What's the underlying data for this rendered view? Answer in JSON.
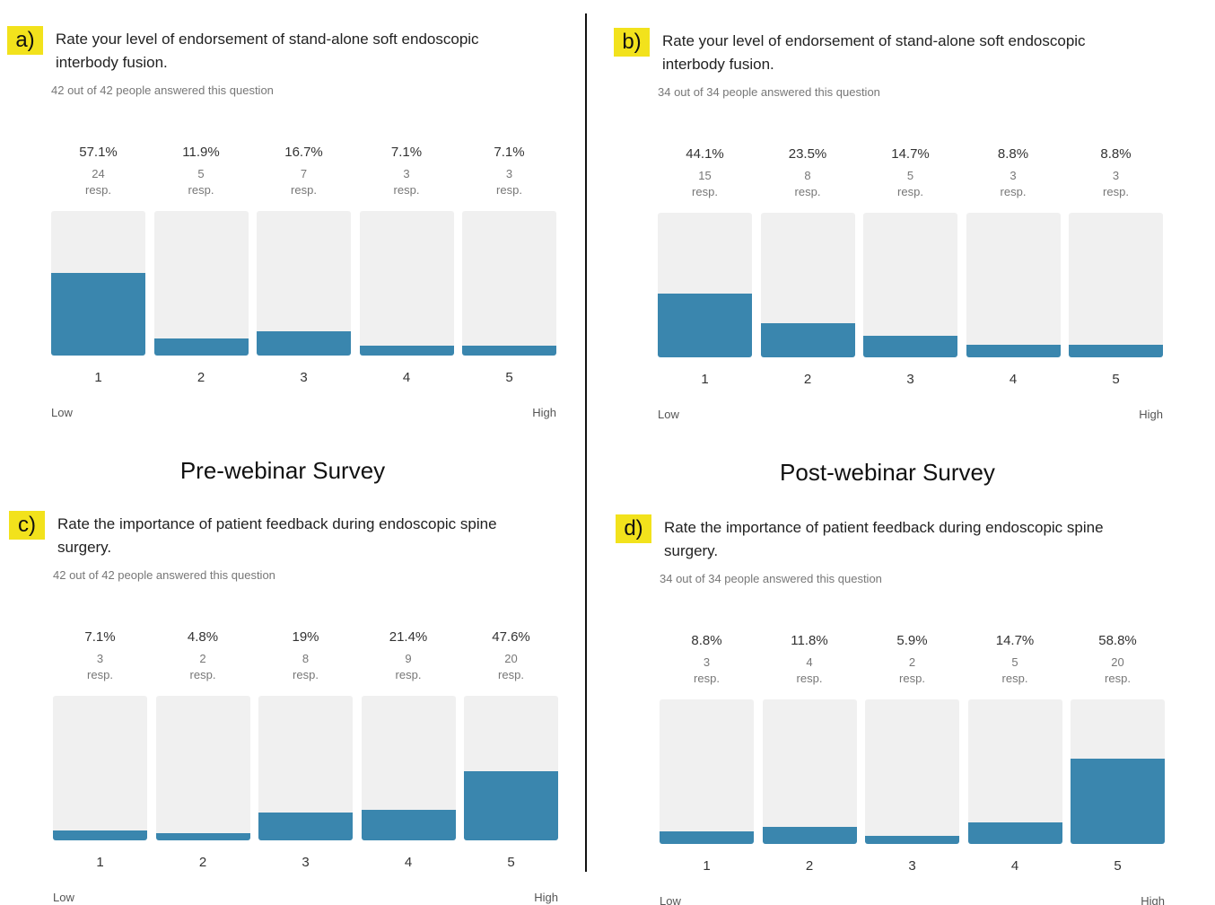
{
  "headings": [
    "Pre-webinar Survey",
    "Post-webinar Survey"
  ],
  "chart_data": [
    {
      "type": "bar",
      "panel": "a)",
      "title": "Rate your level of endorsement of stand-alone soft endoscopic interbody fusion.",
      "subtitle": "42 out of 42 people answered this question",
      "categories": [
        "1",
        "2",
        "3",
        "4",
        "5"
      ],
      "values": [
        57.1,
        11.9,
        16.7,
        7.1,
        7.1
      ],
      "value_labels": [
        "57.1%",
        "11.9%",
        "16.7%",
        "7.1%",
        "7.1%"
      ],
      "counts": [
        24,
        5,
        7,
        3,
        3
      ],
      "count_label": "resp.",
      "x_low_label": "Low",
      "x_high_label": "High",
      "ylim": [
        0,
        100
      ],
      "color": "#3a86ae",
      "grid": false
    },
    {
      "type": "bar",
      "panel": "b)",
      "title": "Rate your level of endorsement of stand-alone soft endoscopic interbody fusion.",
      "subtitle": "34 out of 34 people answered this question",
      "categories": [
        "1",
        "2",
        "3",
        "4",
        "5"
      ],
      "values": [
        44.1,
        23.5,
        14.7,
        8.8,
        8.8
      ],
      "value_labels": [
        "44.1%",
        "23.5%",
        "14.7%",
        "8.8%",
        "8.8%"
      ],
      "counts": [
        15,
        8,
        5,
        3,
        3
      ],
      "count_label": "resp.",
      "x_low_label": "Low",
      "x_high_label": "High",
      "ylim": [
        0,
        100
      ],
      "color": "#3a86ae",
      "grid": false
    },
    {
      "type": "bar",
      "panel": "c)",
      "title": "Rate the importance of patient feedback during endoscopic spine surgery.",
      "subtitle": "42 out of 42 people answered this question",
      "categories": [
        "1",
        "2",
        "3",
        "4",
        "5"
      ],
      "values": [
        7.1,
        4.8,
        19,
        21.4,
        47.6
      ],
      "value_labels": [
        "7.1%",
        "4.8%",
        "19%",
        "21.4%",
        "47.6%"
      ],
      "counts": [
        3,
        2,
        8,
        9,
        20
      ],
      "count_label": "resp.",
      "x_low_label": "Low",
      "x_high_label": "High",
      "ylim": [
        0,
        100
      ],
      "color": "#3a86ae",
      "grid": false
    },
    {
      "type": "bar",
      "panel": "d)",
      "title": "Rate the importance of patient feedback during endoscopic spine surgery.",
      "subtitle": "34 out of 34 people answered this question",
      "categories": [
        "1",
        "2",
        "3",
        "4",
        "5"
      ],
      "values": [
        8.8,
        11.8,
        5.9,
        14.7,
        58.8
      ],
      "value_labels": [
        "8.8%",
        "11.8%",
        "5.9%",
        "14.7%",
        "58.8%"
      ],
      "counts": [
        3,
        4,
        2,
        5,
        20
      ],
      "count_label": "resp.",
      "x_low_label": "Low",
      "x_high_label": "High",
      "ylim": [
        0,
        100
      ],
      "color": "#3a86ae",
      "grid": false
    }
  ]
}
